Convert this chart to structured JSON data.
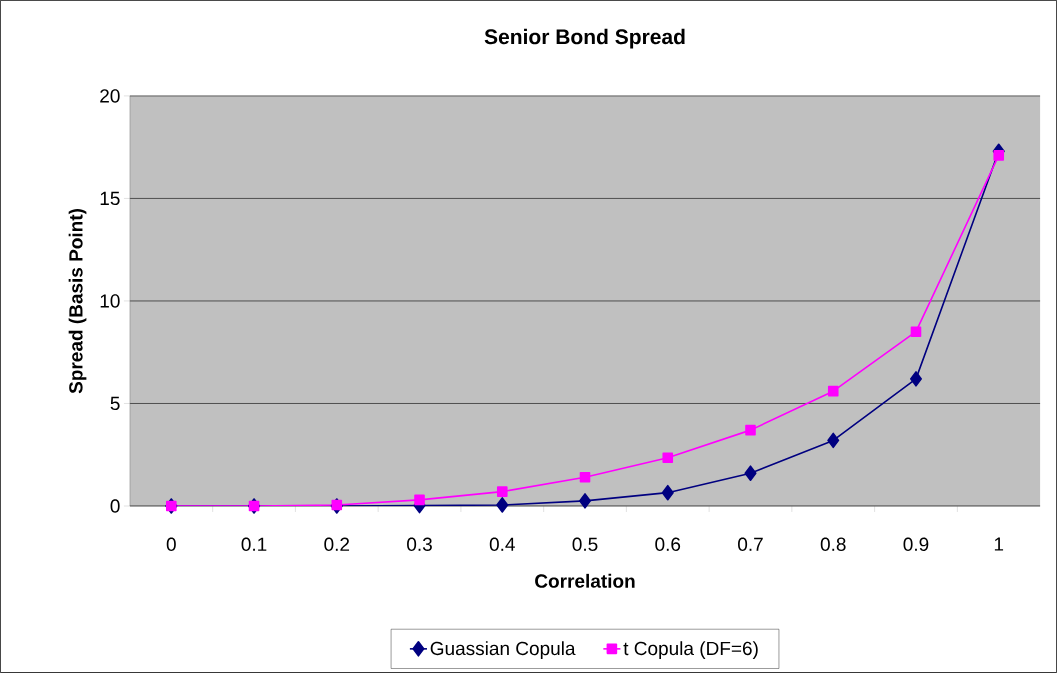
{
  "chart_data": {
    "type": "line",
    "title": "Senior  Bond Spread",
    "xlabel": "Correlation",
    "ylabel": "Spread (Basis Point)",
    "categories": [
      "0",
      "0.1",
      "0.2",
      "0.3",
      "0.4",
      "0.5",
      "0.6",
      "0.7",
      "0.8",
      "0.9",
      "1"
    ],
    "series": [
      {
        "name": "Guassian Copula",
        "color": "#000080",
        "marker": "diamond",
        "values": [
          0,
          0,
          0,
          0.02,
          0.05,
          0.25,
          0.65,
          1.6,
          3.2,
          6.2,
          17.3
        ]
      },
      {
        "name": "t Copula (DF=6)",
        "color": "#ff00ff",
        "marker": "square",
        "values": [
          0,
          0,
          0.05,
          0.3,
          0.7,
          1.4,
          2.35,
          3.7,
          5.6,
          8.5,
          17.1
        ]
      }
    ],
    "ylim": [
      0,
      20
    ],
    "yticks": [
      0,
      5,
      10,
      15,
      20
    ],
    "grid": "y",
    "legend": "bottom",
    "line_style": "solid"
  }
}
